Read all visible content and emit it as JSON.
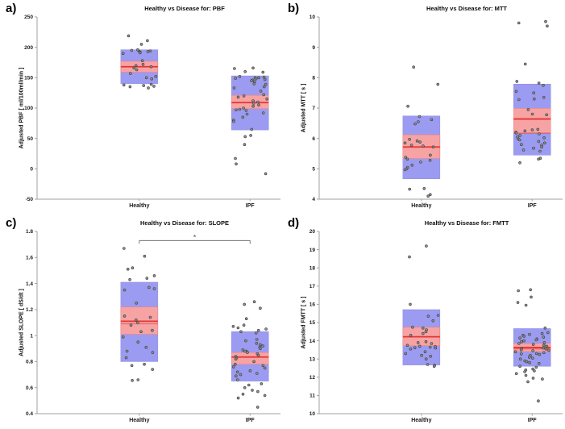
{
  "figure": {
    "background": "#ffffff"
  },
  "colors": {
    "sd_box": "#9b9bf1",
    "sd_box_edge": "#8d8de4",
    "sem_box": "#f7a3a3",
    "sem_box_edge": "#ee7d7d",
    "mean_line": "#e53535",
    "median_line": "#e06060",
    "marker_fill": "#8f8f8f",
    "marker_edge": "#3f3f3f",
    "axis": "#a0a0a0",
    "tick_text": "#1a1a1a",
    "significance": "#5a5a5a"
  },
  "chart_data": [
    {
      "type": "scatter-box",
      "panel_label": "a)",
      "title": "Healthy vs Disease for: PBF",
      "ylabel": "Adjusted PBF [ ml/100ml/min ]",
      "ylim": [
        -50,
        250
      ],
      "yticks": [
        "-50",
        "0",
        "50",
        "100",
        "150",
        "200",
        "250"
      ],
      "significance": null,
      "groups": [
        {
          "category": "Healthy",
          "mean": 168,
          "median": 168,
          "sem_band": [
            159,
            177
          ],
          "sd_band": [
            140,
            196
          ],
          "points": [
            219,
            211,
            205,
            196,
            195,
            194,
            193,
            193,
            192,
            191,
            190,
            178,
            172,
            170,
            168,
            166,
            163,
            157,
            152,
            150,
            148,
            139,
            138,
            137,
            136,
            135,
            133
          ]
        },
        {
          "category": "IPF",
          "mean": 109,
          "median": 110,
          "sem_band": [
            99,
            121
          ],
          "sd_band": [
            64,
            153
          ],
          "points": [
            166,
            165,
            160,
            159,
            152,
            151,
            150,
            150,
            149,
            148,
            147,
            146,
            145,
            143,
            140,
            139,
            135,
            133,
            128,
            122,
            120,
            118,
            115,
            112,
            110,
            108,
            105,
            103,
            100,
            98,
            97,
            96,
            92,
            90,
            85,
            80,
            78,
            65,
            55,
            53,
            40,
            17,
            8,
            -8
          ]
        }
      ]
    },
    {
      "type": "scatter-box",
      "panel_label": "b)",
      "title": "Healthy vs Disease for: MTT",
      "ylabel": "Adjusted MTT [ s ]",
      "ylim": [
        4,
        10
      ],
      "yticks": [
        "4",
        "5",
        "6",
        "7",
        "8",
        "9",
        "10"
      ],
      "significance": null,
      "groups": [
        {
          "category": "Healthy",
          "mean": 5.72,
          "median": 5.72,
          "sem_band": [
            5.34,
            6.12
          ],
          "sd_band": [
            4.67,
            6.74
          ],
          "points": [
            8.35,
            7.78,
            7.06,
            6.72,
            6.62,
            6.55,
            6.48,
            5.97,
            5.92,
            5.88,
            5.85,
            5.78,
            5.75,
            5.72,
            5.45,
            5.38,
            5.32,
            5.28,
            5.22,
            5.12,
            5.05,
            5.0,
            4.97,
            4.35,
            4.33,
            4.15,
            4.1
          ]
        },
        {
          "category": "IPF",
          "mean": 6.64,
          "median": 6.17,
          "sem_band": [
            6.19,
            6.99
          ],
          "sd_band": [
            5.45,
            7.79
          ],
          "points": [
            9.85,
            9.8,
            9.7,
            8.45,
            7.88,
            7.82,
            7.75,
            7.55,
            7.5,
            7.35,
            7.3,
            7.28,
            6.95,
            6.8,
            6.78,
            6.3,
            6.28,
            6.25,
            6.2,
            6.18,
            6.15,
            6.1,
            6.05,
            6.02,
            5.98,
            5.95,
            5.9,
            5.85,
            5.8,
            5.78,
            5.72,
            5.68,
            5.62,
            5.58,
            5.35,
            5.32,
            5.2
          ]
        }
      ]
    },
    {
      "type": "scatter-box",
      "panel_label": "c)",
      "title": "Healthy vs Disease for: SLOPE",
      "ylabel": "Adjusted SLOPE [ dS/dt ]",
      "ylim": [
        0.4,
        1.8
      ],
      "yticks": [
        "0.4",
        "0.6",
        "0.8",
        "1",
        "1.2",
        "1.4",
        "1.6",
        "1.8"
      ],
      "significance": {
        "y": 1.73,
        "label": "*"
      },
      "groups": [
        {
          "category": "Healthy",
          "mean": 1.11,
          "median": 1.09,
          "sem_band": [
            1.01,
            1.22
          ],
          "sd_band": [
            0.8,
            1.41
          ],
          "points": [
            1.67,
            1.61,
            1.52,
            1.51,
            1.46,
            1.44,
            1.43,
            1.37,
            1.36,
            1.35,
            1.25,
            1.15,
            1.14,
            1.12,
            1.1,
            1.08,
            1.04,
            1.03,
            0.99,
            0.95,
            0.91,
            0.88,
            0.87,
            0.83,
            0.78,
            0.77,
            0.74,
            0.66,
            0.655
          ]
        },
        {
          "category": "IPF",
          "mean": 0.835,
          "median": 0.84,
          "sem_band": [
            0.78,
            0.87
          ],
          "sd_band": [
            0.65,
            1.03
          ],
          "points": [
            1.26,
            1.24,
            1.21,
            1.13,
            1.08,
            1.07,
            1.06,
            1.05,
            1.04,
            1.03,
            1.02,
            0.97,
            0.96,
            0.94,
            0.93,
            0.92,
            0.91,
            0.9,
            0.89,
            0.88,
            0.88,
            0.87,
            0.86,
            0.85,
            0.84,
            0.83,
            0.82,
            0.8,
            0.78,
            0.77,
            0.76,
            0.75,
            0.73,
            0.72,
            0.71,
            0.7,
            0.69,
            0.66,
            0.63,
            0.62,
            0.6,
            0.58,
            0.57,
            0.55,
            0.54,
            0.52,
            0.45
          ]
        }
      ]
    },
    {
      "type": "scatter-box",
      "panel_label": "d)",
      "title": "Healthy vs Disease for: FMTT",
      "ylabel": "Adjusted FMTT [ s ]",
      "ylim": [
        10,
        20
      ],
      "yticks": [
        "10",
        "11",
        "12",
        "13",
        "14",
        "15",
        "16",
        "17",
        "18",
        "19",
        "20"
      ],
      "significance": null,
      "groups": [
        {
          "category": "Healthy",
          "mean": 14.22,
          "median": 14.2,
          "sem_band": [
            13.73,
            14.74
          ],
          "sd_band": [
            12.67,
            15.71
          ],
          "points": [
            19.2,
            18.6,
            16.0,
            15.4,
            15.35,
            15.1,
            14.75,
            14.7,
            14.6,
            14.5,
            14.4,
            14.3,
            13.95,
            13.9,
            13.85,
            13.75,
            13.7,
            13.68,
            13.65,
            13.62,
            13.6,
            13.55,
            13.4,
            13.3,
            13.2,
            13.15,
            13.0,
            12.7,
            12.65,
            12.6
          ]
        },
        {
          "category": "IPF",
          "mean": 13.63,
          "median": 13.55,
          "sem_band": [
            13.41,
            13.85
          ],
          "sd_band": [
            12.6,
            14.67
          ],
          "points": [
            16.8,
            16.75,
            16.4,
            16.1,
            15.95,
            14.7,
            14.45,
            14.4,
            14.35,
            14.3,
            14.25,
            14.2,
            14.15,
            14.1,
            14.05,
            14.0,
            13.95,
            13.9,
            13.85,
            13.8,
            13.75,
            13.7,
            13.65,
            13.6,
            13.58,
            13.55,
            13.5,
            13.48,
            13.45,
            13.4,
            13.35,
            13.3,
            13.28,
            13.25,
            13.2,
            13.1,
            13.05,
            13.0,
            12.9,
            12.85,
            12.8,
            12.75,
            12.6,
            12.55,
            12.45,
            12.4,
            12.35,
            12.3,
            12.2,
            12.1,
            11.95,
            11.9,
            11.75,
            10.7
          ]
        }
      ]
    }
  ]
}
